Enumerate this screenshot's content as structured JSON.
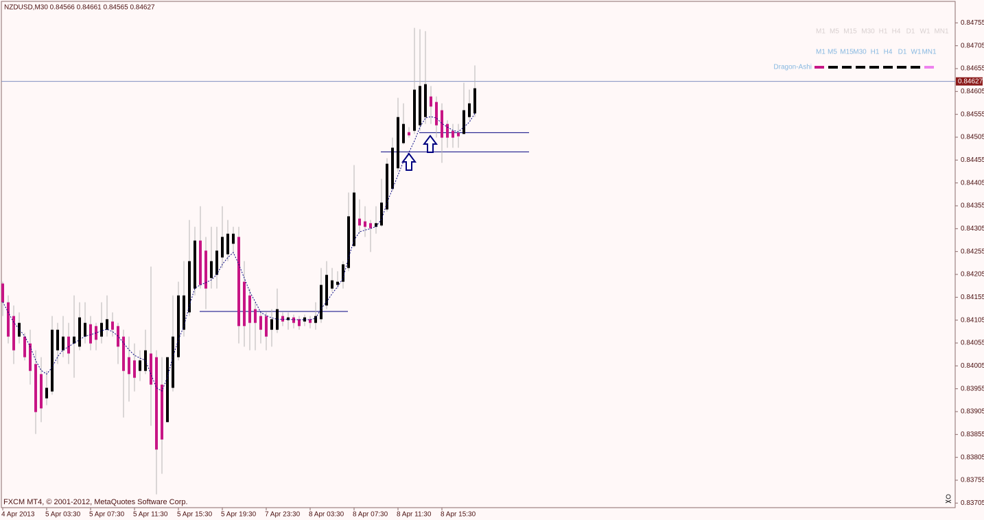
{
  "chart_data": {
    "type": "candlestick",
    "title": "NZDUSD,M30  0.84566 0.84661 0.84565 0.84627",
    "footer": "FXCM MT4, © 2001-2012, MetaQuotes Software Corp.",
    "categories": [
      "4 Apr 2013",
      null,
      null,
      null,
      null,
      null,
      null,
      null,
      "5 Apr 03:30",
      null,
      null,
      null,
      null,
      null,
      null,
      null,
      "5 Apr 07:30",
      null,
      null,
      null,
      null,
      null,
      null,
      null,
      "5 Apr 11:30",
      null,
      null,
      null,
      null,
      null,
      null,
      null,
      "5 Apr 15:30",
      null,
      null,
      null,
      null,
      null,
      null,
      null,
      "5 Apr 19:30",
      null,
      null,
      null,
      null,
      null,
      null,
      null,
      "7 Apr 23:30",
      null,
      null,
      null,
      null,
      null,
      null,
      null,
      "8 Apr 03:30",
      null,
      null,
      null,
      null,
      null,
      null,
      null,
      "8 Apr 07:30",
      null,
      null,
      null,
      null,
      null,
      null,
      null,
      "8 Apr 11:30",
      null,
      null,
      null,
      null,
      null,
      null,
      null,
      "8 Apr 15:30",
      null,
      null,
      null,
      null,
      null,
      null
    ],
    "open": [
      0.84185,
      0.84144,
      0.84114,
      0.84069,
      0.84069,
      0.84054,
      0.84009,
      0.83987,
      0.83934,
      0.83949,
      0.84039,
      0.84039,
      0.84069,
      0.84054,
      0.84047,
      0.84069,
      0.84096,
      0.84092,
      0.84069,
      0.84084,
      0.84102,
      0.84092,
      0.84069,
      0.84024,
      0.84017,
      0.83994,
      0.83994,
      0.84032,
      0.84024,
      0.83964,
      0.83882,
      0.83957,
      0.84024,
      0.84084,
      0.84122,
      0.84174,
      0.84279,
      0.84257,
      0.84197,
      0.84204,
      0.84242,
      0.84249,
      0.84272,
      0.84287,
      0.84189,
      0.84159,
      0.84129,
      0.84114,
      0.84114,
      0.84084,
      0.84084,
      0.84114,
      0.84105,
      0.84111,
      0.84107,
      0.84102,
      0.84107,
      0.84099,
      0.84107,
      0.84137,
      0.84174,
      0.84182,
      0.84189,
      0.84219,
      0.84267,
      0.84327,
      0.84321,
      0.84317,
      0.84309,
      0.84312,
      0.84347,
      0.84392,
      0.84437,
      0.84492,
      0.84516,
      0.84519,
      0.84531,
      0.84549,
      0.84594,
      0.84582,
      0.84564,
      0.84534,
      0.84519,
      0.84515,
      0.84512,
      0.84549,
      0.84557
    ],
    "high": [
      0.84189,
      0.84159,
      0.84137,
      0.84122,
      0.84077,
      0.84084,
      0.84039,
      0.84024,
      0.83994,
      0.84114,
      0.84099,
      0.84114,
      0.84099,
      0.84159,
      0.84144,
      0.84144,
      0.84114,
      0.84099,
      0.84144,
      0.84159,
      0.84122,
      0.84099,
      0.84084,
      0.84069,
      0.84054,
      0.84039,
      0.84084,
      0.84222,
      0.84039,
      0.84024,
      0.84024,
      0.84159,
      0.84189,
      0.84234,
      0.84324,
      0.84309,
      0.84354,
      0.84287,
      0.84309,
      0.84309,
      0.84354,
      0.84324,
      0.84309,
      0.84309,
      0.84234,
      0.84174,
      0.84144,
      0.84122,
      0.84122,
      0.84129,
      0.84174,
      0.84122,
      0.84122,
      0.84117,
      0.84114,
      0.84117,
      0.84114,
      0.84144,
      0.84219,
      0.84234,
      0.84219,
      0.84212,
      0.84234,
      0.84384,
      0.84444,
      0.84369,
      0.84354,
      0.84324,
      0.84354,
      0.84414,
      0.84459,
      0.84504,
      0.84591,
      0.84579,
      0.84527,
      0.84744,
      0.84741,
      0.84737,
      0.84617,
      0.84594,
      0.84579,
      0.84542,
      0.84534,
      0.84534,
      0.84624,
      0.84609,
      0.84662
    ],
    "low": [
      0.84114,
      0.84054,
      0.84009,
      0.84054,
      0.84017,
      0.83964,
      0.83856,
      0.83882,
      0.83919,
      0.83942,
      0.84009,
      0.84024,
      0.84009,
      0.83979,
      0.84039,
      0.84054,
      0.84039,
      0.84039,
      0.84054,
      0.84069,
      0.84069,
      0.84009,
      0.83892,
      0.83927,
      0.83949,
      0.83972,
      0.83987,
      0.83874,
      0.83724,
      0.83769,
      0.83882,
      0.83949,
      0.84017,
      0.84069,
      0.84114,
      0.84159,
      0.84174,
      0.84129,
      0.84174,
      0.84174,
      0.84219,
      0.84234,
      0.84249,
      0.84054,
      0.84047,
      0.84039,
      0.84039,
      0.84054,
      0.84039,
      0.84047,
      0.84077,
      0.84092,
      0.84084,
      0.84087,
      0.84084,
      0.84092,
      0.84087,
      0.84084,
      0.84099,
      0.84129,
      0.84167,
      0.84174,
      0.84174,
      0.84212,
      0.84264,
      0.84294,
      0.84287,
      0.84254,
      0.84294,
      0.84309,
      0.84342,
      0.84387,
      0.84429,
      0.84489,
      0.84504,
      0.84512,
      0.84519,
      0.84534,
      0.84534,
      0.84504,
      0.84449,
      0.84482,
      0.84482,
      0.84482,
      0.84512,
      0.84542,
      0.84549
    ],
    "close": [
      0.84144,
      0.84069,
      0.84039,
      0.84099,
      0.84024,
      0.83994,
      0.83904,
      0.83912,
      0.83957,
      0.84084,
      0.84084,
      0.84069,
      0.84032,
      0.84069,
      0.84111,
      0.84099,
      0.84054,
      0.84062,
      0.84099,
      0.84107,
      0.84084,
      0.84047,
      0.83994,
      0.83987,
      0.83979,
      0.84017,
      0.84039,
      0.83964,
      0.83822,
      0.83844,
      0.84024,
      0.84069,
      0.84159,
      0.84159,
      0.84234,
      0.84279,
      0.84182,
      0.84174,
      0.84234,
      0.84257,
      0.84287,
      0.84294,
      0.84294,
      0.84092,
      0.84092,
      0.84099,
      0.84099,
      0.84084,
      0.84069,
      0.84107,
      0.84129,
      0.84102,
      0.84111,
      0.84099,
      0.84092,
      0.84111,
      0.84099,
      0.84114,
      0.84182,
      0.84204,
      0.84192,
      0.84189,
      0.84227,
      0.84332,
      0.84384,
      0.84312,
      0.84309,
      0.84306,
      0.84317,
      0.84362,
      0.84447,
      0.84482,
      0.84549,
      0.84534,
      0.84509,
      0.84609,
      0.84617,
      0.84621,
      0.84572,
      0.84531,
      0.84504,
      0.84504,
      0.84504,
      0.84507,
      0.84564,
      0.84579,
      0.84612
    ],
    "up_color": "#000000",
    "down_color": "#c71585",
    "wick_color": "#b4b4b4",
    "ma": {
      "color": "#000080",
      "values": [
        0.84145,
        0.84122,
        0.841,
        0.84085,
        0.8407,
        0.84047,
        0.84017,
        0.83995,
        0.83987,
        0.84002,
        0.84025,
        0.8404,
        0.84047,
        0.84055,
        0.84062,
        0.8407,
        0.84073,
        0.84077,
        0.84082,
        0.84085,
        0.8408,
        0.8407,
        0.84055,
        0.8404,
        0.84028,
        0.84022,
        0.84017,
        0.83987,
        0.83957,
        0.8395,
        0.8398,
        0.84025,
        0.84062,
        0.84092,
        0.84137,
        0.84175,
        0.84182,
        0.84187,
        0.84193,
        0.84205,
        0.84227,
        0.84242,
        0.84253,
        0.84227,
        0.84197,
        0.84167,
        0.84145,
        0.84122,
        0.84115,
        0.8411,
        0.84107,
        0.84107,
        0.84107,
        0.84106,
        0.84106,
        0.84106,
        0.84106,
        0.84109,
        0.8413,
        0.84145,
        0.84163,
        0.84178,
        0.84197,
        0.84242,
        0.8428,
        0.84298,
        0.84302,
        0.84305,
        0.8431,
        0.84325,
        0.84362,
        0.84392,
        0.84422,
        0.84452,
        0.84472,
        0.84497,
        0.84527,
        0.84547,
        0.8455,
        0.84547,
        0.84535,
        0.84527,
        0.8452,
        0.84517,
        0.84527,
        0.84538,
        0.84557
      ]
    },
    "levels": [
      0.84124,
      0.84515,
      0.84473
    ],
    "level_color": "#000080",
    "current_price": 0.84627,
    "current_price_color": "#7f8fc0",
    "ylim": [
      0.83695,
      0.84802
    ],
    "yticks": [
      0.84755,
      0.84705,
      0.84655,
      0.84605,
      0.84555,
      0.84505,
      0.84455,
      0.84405,
      0.84355,
      0.84305,
      0.84255,
      0.84205,
      0.84155,
      0.84105,
      0.84055,
      0.84005,
      0.83955,
      0.83905,
      0.83855,
      0.83805,
      0.83755,
      0.83705
    ],
    "grid": false,
    "panel": {
      "timeframes_top": [
        "M1",
        "M5",
        "M15",
        "M30",
        "H1",
        "H4",
        "D1",
        "W1",
        "MN1"
      ],
      "timeframes": [
        "M1",
        "M5",
        "M15",
        "M30",
        "H1",
        "H4",
        "D1",
        "W1",
        "MN1"
      ],
      "indicator": "Dragon-Ashi"
    }
  }
}
